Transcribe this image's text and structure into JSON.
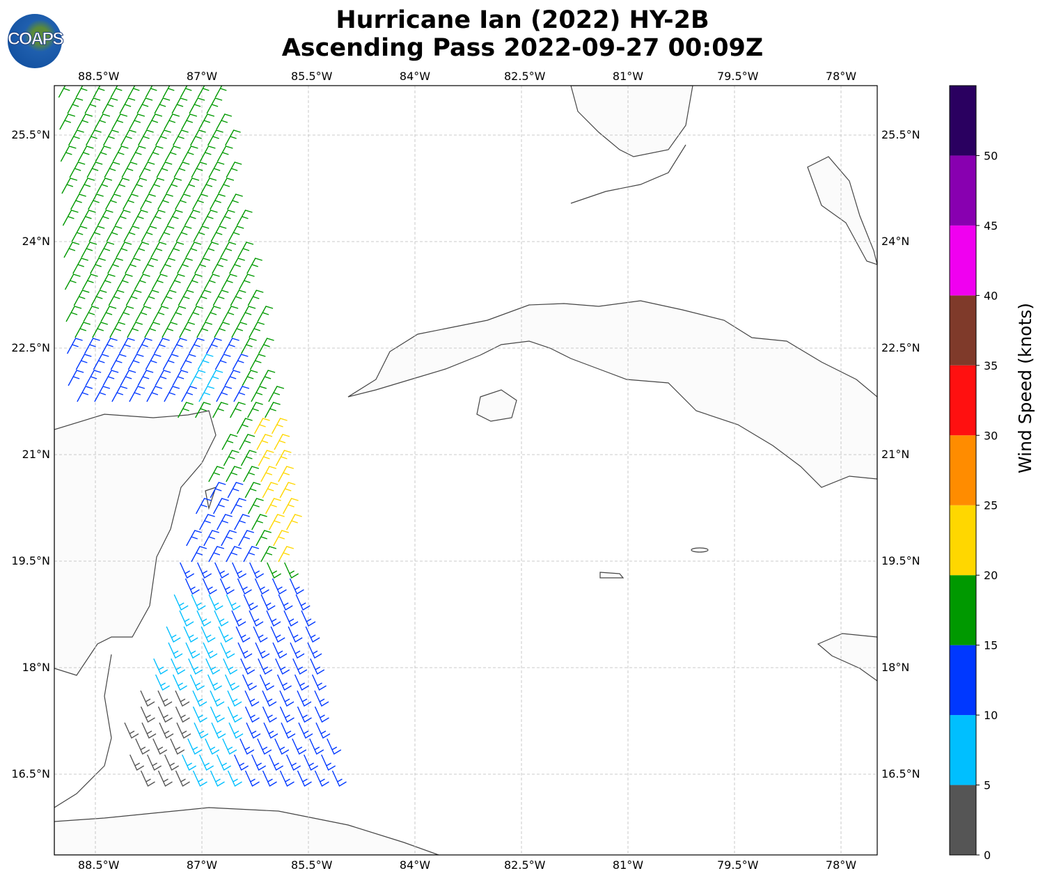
{
  "title": {
    "line1": "Hurricane Ian (2022) HY-2B",
    "line2": "Ascending Pass 2022-09-27 00:09Z"
  },
  "logo": {
    "text": "COAPS"
  },
  "map": {
    "lon_ticks": [
      "88.5°W",
      "87°W",
      "85.5°W",
      "84°W",
      "82.5°W",
      "81°W",
      "79.5°W",
      "78°W"
    ],
    "lon_values": [
      -88.5,
      -87,
      -85.5,
      -84,
      -82.5,
      -81,
      -79.5,
      -78
    ],
    "lat_ticks": [
      "25.5°N",
      "24°N",
      "22.5°N",
      "21°N",
      "19.5°N",
      "18°N",
      "16.5°N"
    ],
    "lat_values": [
      25.5,
      24,
      22.5,
      21,
      19.5,
      18,
      16.5
    ],
    "extent": {
      "lon": [
        -89.08,
        -77.49
      ],
      "lat": [
        15.36,
        26.2
      ]
    }
  },
  "colorbar": {
    "label": "Wind Speed (knots)",
    "ticks": [
      "0",
      "5",
      "10",
      "15",
      "20",
      "25",
      "30",
      "35",
      "40",
      "45",
      "50"
    ],
    "colors": [
      "#555555",
      "#00bfff",
      "#0038ff",
      "#009900",
      "#ffd700",
      "#ff8c00",
      "#ff1010",
      "#7f3a2a",
      "#f000f0",
      "#8800b0",
      "#2a0060"
    ]
  }
}
